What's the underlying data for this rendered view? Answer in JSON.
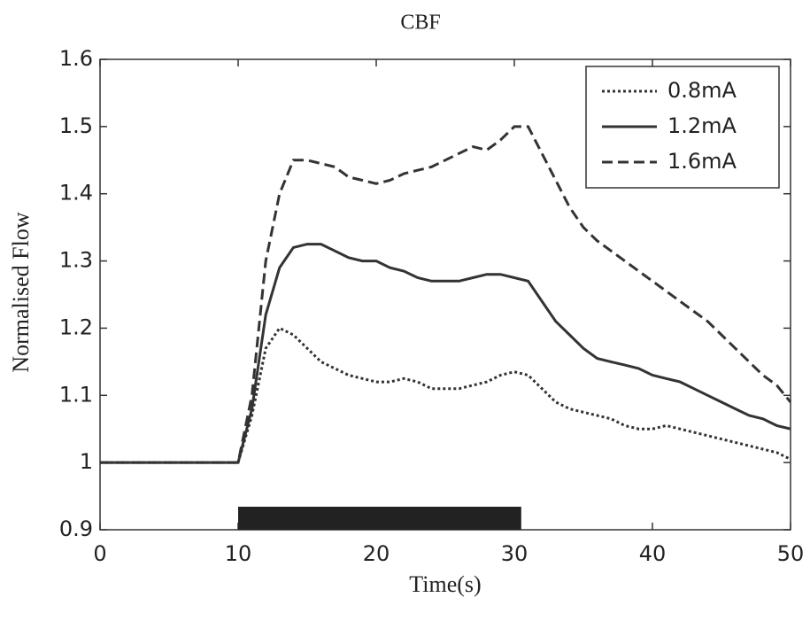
{
  "chart_data": {
    "type": "line",
    "title": "CBF",
    "x_label": "Time(s)",
    "y_label": "Normalised Flow",
    "x": [
      0,
      1,
      2,
      3,
      4,
      5,
      6,
      7,
      8,
      9,
      10,
      11,
      12,
      13,
      14,
      15,
      16,
      17,
      18,
      19,
      20,
      21,
      22,
      23,
      24,
      25,
      26,
      27,
      28,
      29,
      30,
      31,
      32,
      33,
      34,
      35,
      36,
      37,
      38,
      39,
      40,
      41,
      42,
      43,
      44,
      45,
      46,
      47,
      48,
      49,
      50
    ],
    "series": [
      {
        "name": "0.8mA",
        "color": "#333333",
        "style": "dotted",
        "values": [
          1,
          1,
          1,
          1,
          1,
          1,
          1,
          1,
          1,
          1,
          1,
          1.07,
          1.17,
          1.2,
          1.19,
          1.17,
          1.15,
          1.14,
          1.13,
          1.125,
          1.12,
          1.12,
          1.125,
          1.12,
          1.11,
          1.11,
          1.11,
          1.115,
          1.12,
          1.13,
          1.135,
          1.13,
          1.11,
          1.09,
          1.08,
          1.075,
          1.07,
          1.065,
          1.055,
          1.05,
          1.05,
          1.055,
          1.05,
          1.045,
          1.04,
          1.035,
          1.03,
          1.025,
          1.02,
          1.015,
          1.005
        ]
      },
      {
        "name": "1.2mA",
        "color": "#333333",
        "style": "solid",
        "values": [
          1,
          1,
          1,
          1,
          1,
          1,
          1,
          1,
          1,
          1,
          1,
          1.08,
          1.22,
          1.29,
          1.32,
          1.325,
          1.325,
          1.315,
          1.305,
          1.3,
          1.3,
          1.29,
          1.285,
          1.275,
          1.27,
          1.27,
          1.27,
          1.275,
          1.28,
          1.28,
          1.275,
          1.27,
          1.24,
          1.21,
          1.19,
          1.17,
          1.155,
          1.15,
          1.145,
          1.14,
          1.13,
          1.125,
          1.12,
          1.11,
          1.1,
          1.09,
          1.08,
          1.07,
          1.065,
          1.055,
          1.05
        ]
      },
      {
        "name": "1.6mA",
        "color": "#333333",
        "style": "dashed",
        "values": [
          1,
          1,
          1,
          1,
          1,
          1,
          1,
          1,
          1,
          1,
          1,
          1.1,
          1.3,
          1.4,
          1.45,
          1.45,
          1.445,
          1.44,
          1.425,
          1.42,
          1.415,
          1.42,
          1.43,
          1.435,
          1.44,
          1.45,
          1.46,
          1.47,
          1.465,
          1.48,
          1.5,
          1.5,
          1.46,
          1.42,
          1.38,
          1.35,
          1.33,
          1.315,
          1.3,
          1.285,
          1.27,
          1.255,
          1.24,
          1.225,
          1.21,
          1.19,
          1.17,
          1.15,
          1.13,
          1.115,
          1.09
        ]
      }
    ],
    "stimulus_bar": {
      "x": [
        10,
        30.5
      ],
      "color": "#222222"
    },
    "xlim": [
      0,
      50
    ],
    "ylim": [
      0.9,
      1.6
    ],
    "xticks": [
      0,
      10,
      20,
      30,
      40,
      50
    ],
    "yticks": [
      0.9,
      1,
      1.1,
      1.2,
      1.3,
      1.4,
      1.5,
      1.6
    ],
    "grid": false,
    "legend_position": "upper right"
  }
}
